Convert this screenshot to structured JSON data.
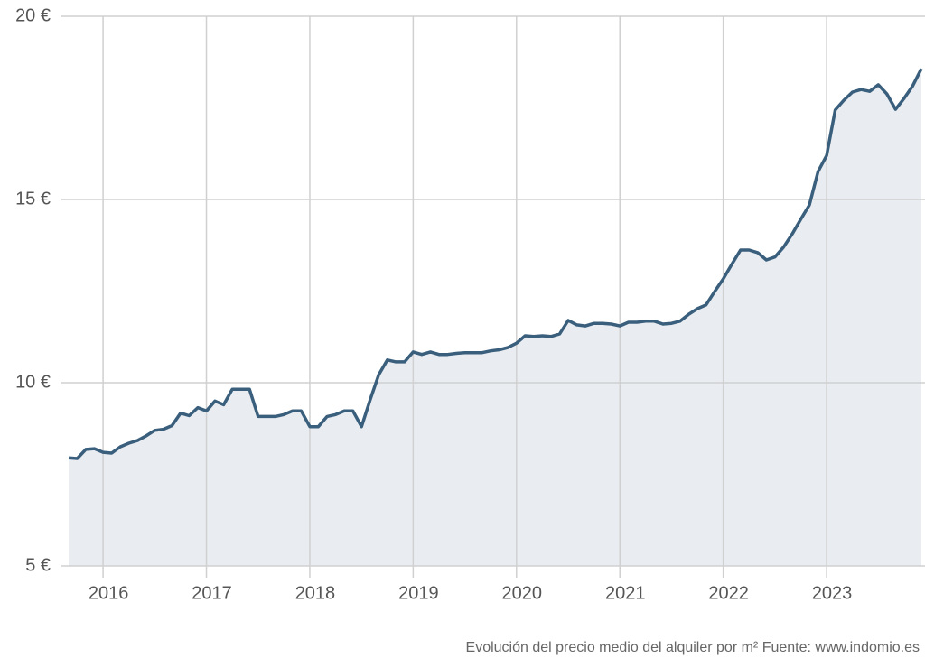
{
  "chart_data": {
    "type": "area",
    "caption": "Evolución del precio medio del alquiler por m² Fuente: www.indomio.es",
    "x": [
      2015.667,
      2015.75,
      2015.833,
      2015.917,
      2016.0,
      2016.083,
      2016.167,
      2016.25,
      2016.333,
      2016.417,
      2016.5,
      2016.583,
      2016.667,
      2016.75,
      2016.833,
      2016.917,
      2017.0,
      2017.083,
      2017.167,
      2017.25,
      2017.333,
      2017.417,
      2017.5,
      2017.583,
      2017.667,
      2017.75,
      2017.833,
      2017.917,
      2018.0,
      2018.083,
      2018.167,
      2018.25,
      2018.333,
      2018.417,
      2018.5,
      2018.583,
      2018.667,
      2018.75,
      2018.833,
      2018.917,
      2019.0,
      2019.083,
      2019.167,
      2019.25,
      2019.333,
      2019.417,
      2019.5,
      2019.583,
      2019.667,
      2019.75,
      2019.833,
      2019.917,
      2020.0,
      2020.083,
      2020.167,
      2020.25,
      2020.333,
      2020.417,
      2020.5,
      2020.583,
      2020.667,
      2020.75,
      2020.833,
      2020.917,
      2021.0,
      2021.083,
      2021.167,
      2021.25,
      2021.333,
      2021.417,
      2021.5,
      2021.583,
      2021.667,
      2021.75,
      2021.833,
      2021.917,
      2022.0,
      2022.083,
      2022.167,
      2022.25,
      2022.333,
      2022.417,
      2022.5,
      2022.583,
      2022.667,
      2022.75,
      2022.833,
      2022.917,
      2023.0,
      2023.083,
      2023.167,
      2023.25,
      2023.333,
      2023.417,
      2023.5,
      2023.583,
      2023.667,
      2023.75,
      2023.833,
      2023.917
    ],
    "series": [
      {
        "color": "#3a5f7d",
        "values": [
          7.95,
          7.93,
          8.18,
          8.2,
          8.1,
          8.08,
          8.25,
          8.35,
          8.42,
          8.55,
          8.7,
          8.73,
          8.83,
          9.17,
          9.1,
          9.32,
          9.23,
          9.5,
          9.4,
          9.82,
          9.82,
          9.82,
          9.08,
          9.08,
          9.08,
          9.13,
          9.23,
          9.23,
          8.8,
          8.8,
          9.08,
          9.13,
          9.23,
          9.23,
          8.8,
          9.53,
          10.22,
          10.62,
          10.57,
          10.57,
          10.84,
          10.77,
          10.84,
          10.77,
          10.77,
          10.8,
          10.82,
          10.82,
          10.82,
          10.87,
          10.9,
          10.96,
          11.08,
          11.28,
          11.26,
          11.28,
          11.26,
          11.33,
          11.7,
          11.58,
          11.55,
          11.62,
          11.62,
          11.6,
          11.55,
          11.65,
          11.65,
          11.68,
          11.68,
          11.6,
          11.62,
          11.68,
          11.87,
          12.02,
          12.12,
          12.49,
          12.83,
          13.23,
          13.62,
          13.62,
          13.55,
          13.35,
          13.43,
          13.7,
          14.06,
          14.46,
          14.85,
          15.76,
          16.2,
          17.44,
          17.71,
          17.93,
          18.0,
          17.95,
          18.13,
          17.88,
          17.46,
          17.76,
          18.1,
          18.57
        ]
      }
    ],
    "fill_color": "#e9edf2",
    "xlim": [
      2015.667,
      2023.917
    ],
    "xticks": [
      2016,
      2017,
      2018,
      2019,
      2020,
      2021,
      2022,
      2023
    ],
    "ylim": [
      5,
      20
    ],
    "yticks": [
      {
        "value": 5,
        "label": "5 €"
      },
      {
        "value": 10,
        "label": "10 €"
      },
      {
        "value": 15,
        "label": "15 €"
      },
      {
        "value": 20,
        "label": "20 €"
      }
    ],
    "grid": true
  }
}
